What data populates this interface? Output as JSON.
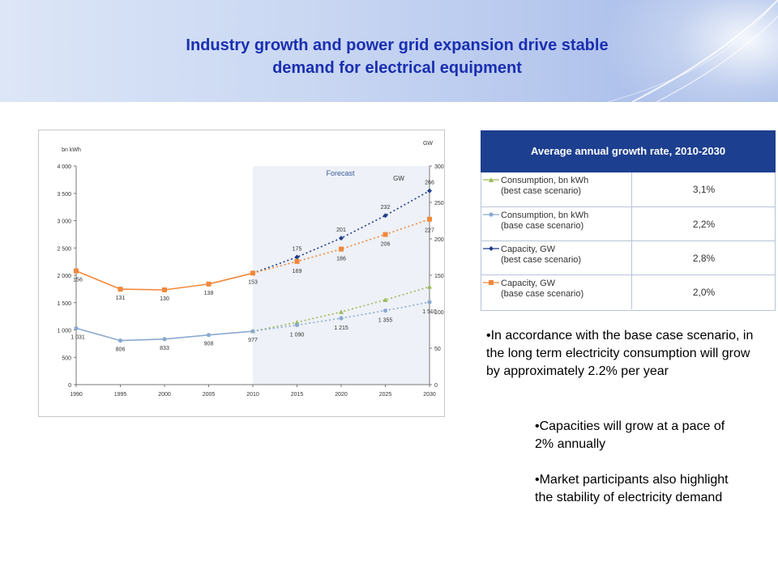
{
  "header": {
    "title_line1": "Industry growth and power grid expansion drive stable",
    "title_line2": "demand for electrical equipment"
  },
  "chart_data": {
    "type": "line",
    "x": [
      "1990",
      "1995",
      "2000",
      "2005",
      "2010",
      "2015",
      "2020",
      "2025",
      "2030"
    ],
    "y_left_label": "bn kWh",
    "y_right_label": "GW",
    "y_left_ticks": [
      "0",
      "500",
      "1 000",
      "1 500",
      "2 000",
      "2 500",
      "3 000",
      "3 500",
      "4 000"
    ],
    "y_right_ticks": [
      "0",
      "50",
      "100",
      "150",
      "200",
      "250",
      "300"
    ],
    "ylim_left": [
      0,
      4000
    ],
    "ylim_right": [
      0,
      300
    ],
    "forecast_label": "Forecast",
    "forecast_axis_label": "GW",
    "forecast_start": "2010",
    "series": [
      {
        "name": "Consumption, bn kWh (best case scenario)",
        "axis": "left",
        "color": "#9bbb59",
        "marker": "triangle",
        "values": [
          null,
          null,
          null,
          null,
          977,
          1140,
          1330,
          1550,
          1790
        ],
        "labels": []
      },
      {
        "name": "Consumption, bn kWh (base case scenario)",
        "axis": "left",
        "color": "#8aaad0",
        "marker": "circle",
        "values": [
          1031,
          806,
          833,
          908,
          977,
          1090,
          1215,
          1355,
          1510
        ],
        "labels": [
          "1 031",
          "806",
          "833",
          "908",
          "977",
          "1 090",
          "1 215",
          "1 355",
          "1 510"
        ]
      },
      {
        "name": "Capacity, GW (best case scenario)",
        "axis": "right",
        "color": "#1f3c88",
        "marker": "diamond",
        "values": [
          null,
          null,
          null,
          null,
          153,
          175,
          201,
          232,
          266
        ],
        "labels": [
          "",
          "",
          "",
          "",
          "",
          "175",
          "201",
          "232",
          "266"
        ]
      },
      {
        "name": "Capacity, GW (base case scenario)",
        "axis": "right",
        "color": "#f0883a",
        "marker": "square",
        "values": [
          156,
          131,
          130,
          138,
          153,
          169,
          186,
          206,
          227
        ],
        "labels": [
          "156",
          "131",
          "130",
          "138",
          "153",
          "169",
          "186",
          "206",
          "227"
        ]
      }
    ]
  },
  "table": {
    "title": "Average annual growth rate, 2010-2030",
    "rows": [
      {
        "line1": "Consumption, bn kWh",
        "line2": "(best case scenario)",
        "value": "3,1%",
        "color": "#9bbb59",
        "marker": "triangle"
      },
      {
        "line1": "Consumption, bn kWh",
        "line2": "(base case scenario)",
        "value": "2,2%",
        "color": "#8aaad0",
        "marker": "circle"
      },
      {
        "line1": "Capacity, GW",
        "line2": "(best case scenario)",
        "value": "2,8%",
        "color": "#1f3c88",
        "marker": "diamond"
      },
      {
        "line1": "Capacity, GW",
        "line2": "(base case scenario)",
        "value": "2,0%",
        "color": "#f0883a",
        "marker": "square"
      }
    ]
  },
  "bullets": {
    "b1": "•In accordance with the base case scenario, in the long term electricity consumption will grow by approximately 2.2% per year",
    "b2": "•Capacities will grow at a pace of 2% annually",
    "b3": "•Market participants also highlight the stability of electricity demand"
  }
}
